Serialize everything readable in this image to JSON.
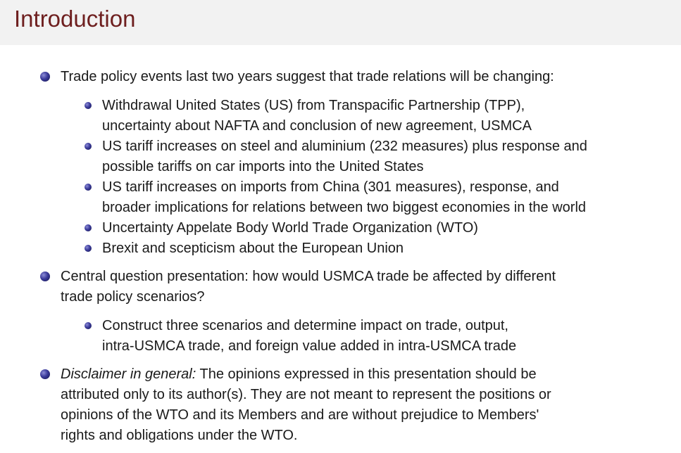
{
  "header": {
    "title": "Introduction"
  },
  "items": [
    {
      "lines": [
        "Trade policy events last two years suggest that trade relations will be changing:"
      ],
      "subitems": [
        {
          "lines": [
            "Withdrawal United States (US) from Transpacific Partnership (TPP),",
            "uncertainty about NAFTA and conclusion of new agreement, USMCA"
          ]
        },
        {
          "lines": [
            "US tariff increases on steel and aluminium (232 measures) plus response and",
            "possible tariffs on car imports into the United States"
          ]
        },
        {
          "lines": [
            "US tariff increases on imports from China (301 measures), response, and",
            "broader implications for relations between two biggest economies in the world"
          ]
        },
        {
          "lines": [
            "Uncertainty Appelate Body World Trade Organization (WTO)"
          ]
        },
        {
          "lines": [
            "Brexit and scepticism about the European Union"
          ]
        }
      ]
    },
    {
      "lines": [
        "Central question presentation: how would USMCA trade be affected by different",
        "trade policy scenarios?"
      ],
      "subitems": [
        {
          "lines": [
            "Construct three scenarios and determine impact on trade, output,",
            "intra-USMCA trade, and foreign value added in intra-USMCA trade"
          ]
        }
      ]
    },
    {
      "emphasis": "Disclaimer in general:",
      "lines": [
        "The opinions expressed in this presentation should be",
        "attributed only to its author(s). They are not meant to represent the positions or",
        "opinions of the WTO and its Members and are without prejudice to Members'",
        "rights and obligations under the WTO."
      ]
    }
  ]
}
